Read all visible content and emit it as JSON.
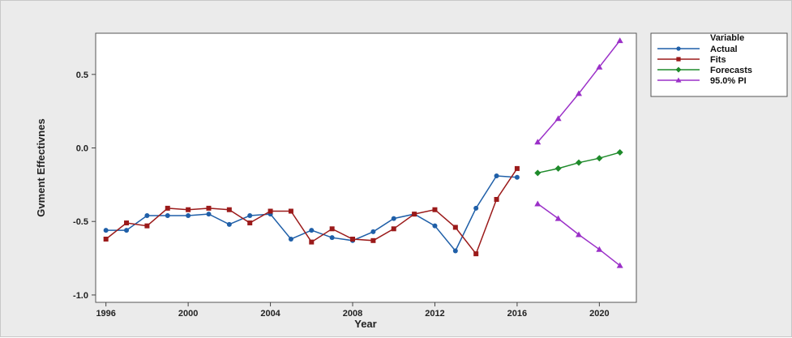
{
  "chart_data": {
    "type": "line",
    "xlabel": "Year",
    "ylabel": "Gvment Effectivnes",
    "xlim": [
      1995.5,
      2021.8
    ],
    "ylim": [
      -1.05,
      0.78
    ],
    "x_ticks": [
      1996,
      2000,
      2004,
      2008,
      2012,
      2016,
      2020
    ],
    "y_ticks": [
      {
        "value": -1.0,
        "label": "-1.0"
      },
      {
        "value": -0.5,
        "label": "-0.5"
      },
      {
        "value": 0.0,
        "label": "0.0"
      },
      {
        "value": 0.5,
        "label": "0.5"
      }
    ],
    "legend": {
      "title": "Variable",
      "placement": "outside-right"
    },
    "series": [
      {
        "name": "Actual",
        "color": "#1f5fa8",
        "marker": "circle",
        "x": [
          1996,
          1997,
          1998,
          1999,
          2000,
          2001,
          2002,
          2003,
          2004,
          2005,
          2006,
          2007,
          2008,
          2009,
          2010,
          2011,
          2012,
          2013,
          2014,
          2015,
          2016
        ],
        "y": [
          -0.56,
          -0.56,
          -0.46,
          -0.46,
          -0.46,
          -0.45,
          -0.52,
          -0.46,
          -0.45,
          -0.62,
          -0.56,
          -0.61,
          -0.63,
          -0.57,
          -0.48,
          -0.45,
          -0.53,
          -0.7,
          -0.41,
          -0.19,
          -0.2
        ]
      },
      {
        "name": "Fits",
        "color": "#9b1a1a",
        "marker": "square",
        "x": [
          1996,
          1997,
          1998,
          1999,
          2000,
          2001,
          2002,
          2003,
          2004,
          2005,
          2006,
          2007,
          2008,
          2009,
          2010,
          2011,
          2012,
          2013,
          2014,
          2015,
          2016
        ],
        "y": [
          -0.62,
          -0.51,
          -0.53,
          -0.41,
          -0.42,
          -0.41,
          -0.42,
          -0.51,
          -0.43,
          -0.43,
          -0.64,
          -0.55,
          -0.62,
          -0.63,
          -0.55,
          -0.45,
          -0.42,
          -0.54,
          -0.72,
          -0.35,
          -0.14
        ]
      },
      {
        "name": "Forecasts",
        "color": "#1e8a2a",
        "marker": "diamond",
        "x": [
          2017,
          2018,
          2019,
          2020,
          2021
        ],
        "y": [
          -0.17,
          -0.14,
          -0.1,
          -0.07,
          -0.03
        ]
      },
      {
        "name": "95.0% PI",
        "color": "#9b30c8",
        "marker": "triangle",
        "x": [
          2017,
          2018,
          2019,
          2020,
          2021
        ],
        "y": [
          0.04,
          0.2,
          0.37,
          0.55,
          0.73
        ]
      },
      {
        "name": "",
        "color": "#9b30c8",
        "marker": "triangle",
        "x": [
          2017,
          2018,
          2019,
          2020,
          2021
        ],
        "y": [
          -0.38,
          -0.48,
          -0.59,
          -0.69,
          -0.8
        ]
      }
    ]
  }
}
